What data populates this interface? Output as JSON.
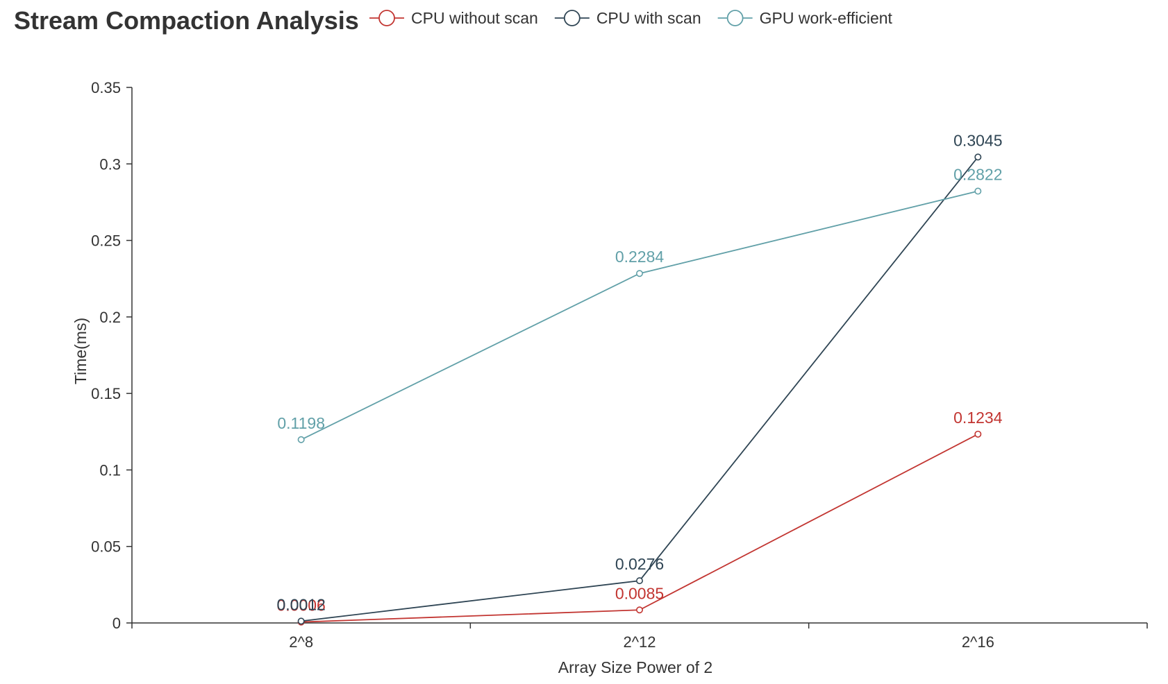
{
  "chart_data": {
    "type": "line",
    "title": "Stream Compaction Analysis",
    "xlabel": "Array Size Power of 2",
    "ylabel": "Time(ms)",
    "categories": [
      "2^8",
      "2^12",
      "2^16"
    ],
    "ylim": [
      0,
      0.35
    ],
    "yticks": [
      "0",
      "0.05",
      "0.1",
      "0.15",
      "0.2",
      "0.25",
      "0.3",
      "0.35"
    ],
    "grid": false,
    "legend_position": "top",
    "series": [
      {
        "name": "CPU without scan",
        "color": "#c23531",
        "values": [
          0.0006,
          0.0085,
          0.1234
        ],
        "labels": [
          "0.0006",
          "0.0085",
          "0.1234"
        ]
      },
      {
        "name": "CPU with scan",
        "color": "#2f4554",
        "values": [
          0.0012,
          0.0276,
          0.3045
        ],
        "labels": [
          "0.0012",
          "0.0276",
          "0.3045"
        ]
      },
      {
        "name": "GPU work-efficient",
        "color": "#61a0a8",
        "values": [
          0.1198,
          0.2284,
          0.2822
        ],
        "labels": [
          "0.1198",
          "0.2284",
          "0.2822"
        ]
      }
    ]
  }
}
